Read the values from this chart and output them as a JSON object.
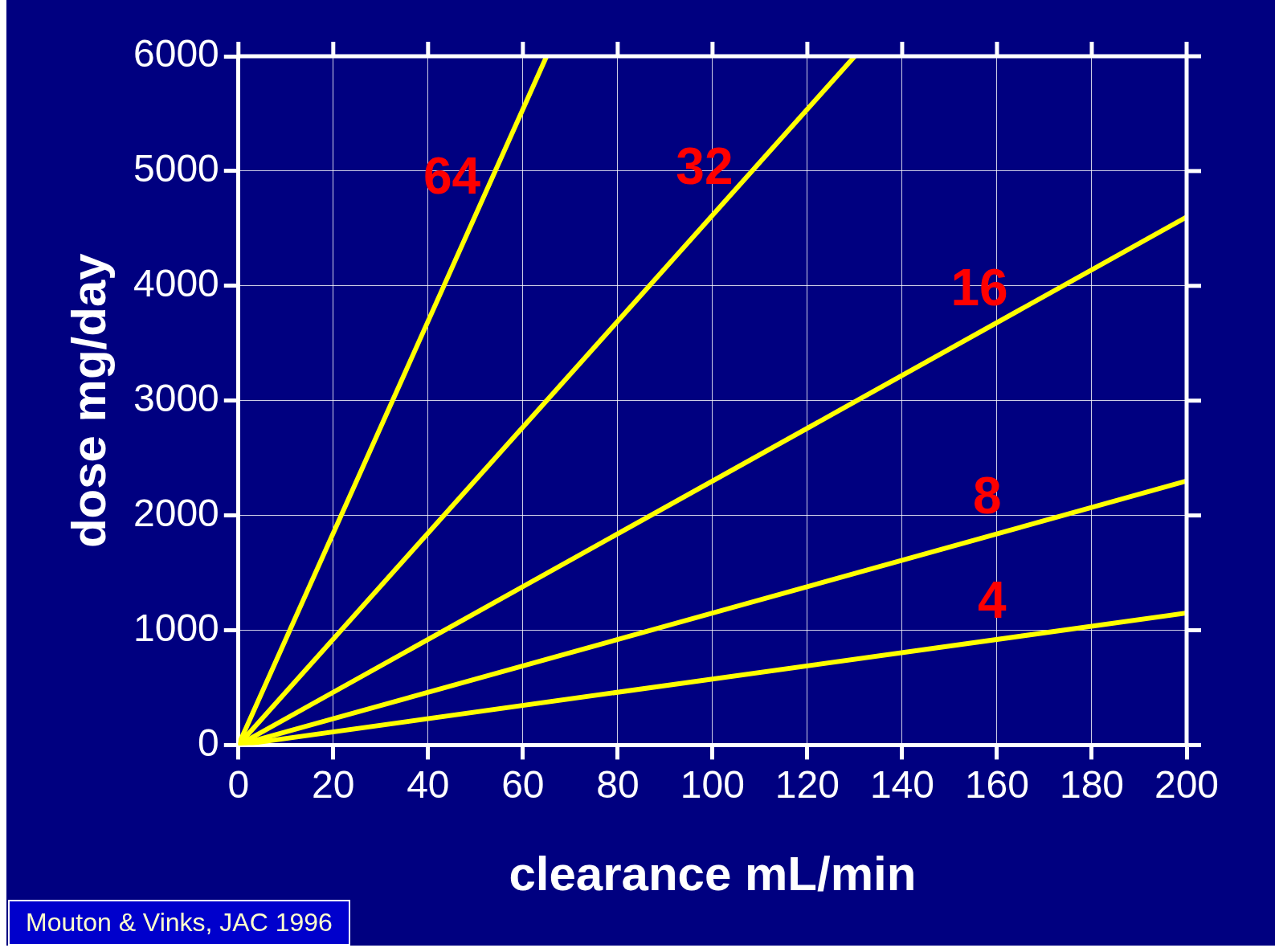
{
  "chart_data": {
    "type": "line",
    "xlabel": "clearance mL/min",
    "ylabel": "dose mg/day",
    "xlim": [
      0,
      200
    ],
    "xticks": [
      0,
      20,
      40,
      60,
      80,
      100,
      120,
      140,
      160,
      180,
      200
    ],
    "ylim": [
      0,
      6000
    ],
    "yticks": [
      0,
      1000,
      2000,
      3000,
      4000,
      5000,
      6000
    ],
    "grid": true,
    "legend": false,
    "marker": "none",
    "line_style": "solid",
    "series": [
      {
        "name": "64",
        "color": "#ffff00",
        "x": [
          0,
          65
        ],
        "values": [
          0,
          6000
        ]
      },
      {
        "name": "32",
        "color": "#ffff00",
        "x": [
          0,
          130
        ],
        "values": [
          0,
          6000
        ]
      },
      {
        "name": "16",
        "color": "#ffff00",
        "x": [
          0,
          200
        ],
        "values": [
          0,
          4600
        ]
      },
      {
        "name": "8",
        "color": "#ffff00",
        "x": [
          0,
          200
        ],
        "values": [
          0,
          2300
        ]
      },
      {
        "name": "4",
        "color": "#ffff00",
        "x": [
          0,
          200
        ],
        "values": [
          0,
          1150
        ]
      }
    ],
    "annotations": [
      "Mouton & Vinks, JAC 1996"
    ]
  }
}
